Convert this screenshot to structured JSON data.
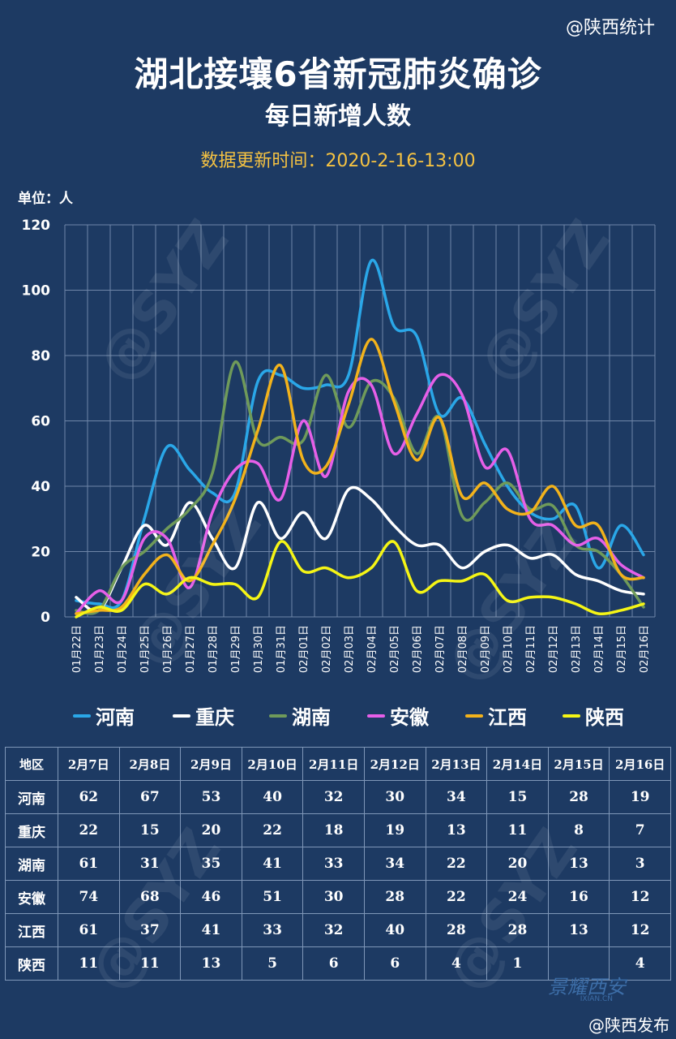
{
  "source": "@陕西统计",
  "title": "湖北接壤6省新冠肺炎确诊",
  "subtitle": "每日新增人数",
  "update_time": "数据更新时间：2020-2-16-13:00",
  "unit": "单位：人",
  "watermark": "@SYZ",
  "brand": "景耀西安",
  "brand_sub": "IXIAN.CN",
  "footer": "@陕西发布",
  "chart_data": {
    "type": "line",
    "ylim": [
      0,
      120
    ],
    "yticks": [
      0,
      20,
      40,
      60,
      80,
      100,
      120
    ],
    "categories": [
      "01月22日",
      "01月23日",
      "01月24日",
      "01月25日",
      "01月26日",
      "01月27日",
      "01月28日",
      "01月29日",
      "01月30日",
      "01月31日",
      "02月01日",
      "02月02日",
      "02月03日",
      "02月04日",
      "02月05日",
      "02月06日",
      "02月07日",
      "02月08日",
      "02月09日",
      "02月10日",
      "02月11日",
      "02月12日",
      "02月13日",
      "02月14日",
      "02月15日",
      "02月16日"
    ],
    "series": [
      {
        "name": "河南",
        "color": "#2aa7e8",
        "values": [
          5,
          4,
          5,
          30,
          52,
          45,
          38,
          38,
          72,
          74,
          70,
          71,
          74,
          109,
          89,
          86,
          62,
          67,
          53,
          40,
          32,
          30,
          34,
          15,
          28,
          19
        ]
      },
      {
        "name": "重庆",
        "color": "#ffffff",
        "values": [
          6,
          2,
          15,
          28,
          22,
          35,
          24,
          15,
          35,
          24,
          32,
          24,
          39,
          36,
          28,
          22,
          22,
          15,
          20,
          22,
          18,
          19,
          13,
          11,
          8,
          7
        ]
      },
      {
        "name": "湖南",
        "color": "#6f9a5a",
        "values": [
          2,
          2,
          15,
          20,
          27,
          33,
          44,
          78,
          54,
          55,
          54,
          74,
          58,
          72,
          67,
          50,
          61,
          31,
          35,
          41,
          33,
          34,
          22,
          20,
          13,
          3
        ]
      },
      {
        "name": "安徽",
        "color": "#e65fe8",
        "values": [
          1,
          8,
          5,
          24,
          24,
          9,
          32,
          45,
          47,
          36,
          60,
          43,
          69,
          71,
          50,
          62,
          74,
          68,
          46,
          51,
          30,
          28,
          22,
          24,
          16,
          12
        ]
      },
      {
        "name": "江西",
        "color": "#f2b21b",
        "values": [
          1,
          2,
          3,
          13,
          19,
          11,
          22,
          36,
          57,
          77,
          48,
          46,
          65,
          85,
          66,
          48,
          61,
          37,
          41,
          33,
          32,
          40,
          28,
          28,
          13,
          12
        ]
      },
      {
        "name": "陕西",
        "color": "#f5f515",
        "values": [
          0,
          3,
          2,
          10,
          7,
          12,
          10,
          10,
          6,
          23,
          14,
          15,
          12,
          15,
          23,
          8,
          11,
          11,
          13,
          5,
          6,
          6,
          4,
          1,
          2,
          4
        ]
      }
    ]
  },
  "table": {
    "corner": "地区",
    "columns": [
      "2月7日",
      "2月8日",
      "2月9日",
      "2月10日",
      "2月11日",
      "2月12日",
      "2月13日",
      "2月14日",
      "2月15日",
      "2月16日"
    ],
    "rows": [
      {
        "region": "河南",
        "values": [
          "62",
          "67",
          "53",
          "40",
          "32",
          "30",
          "34",
          "15",
          "28",
          "19"
        ]
      },
      {
        "region": "重庆",
        "values": [
          "22",
          "15",
          "20",
          "22",
          "18",
          "19",
          "13",
          "11",
          "8",
          "7"
        ]
      },
      {
        "region": "湖南",
        "values": [
          "61",
          "31",
          "35",
          "41",
          "33",
          "34",
          "22",
          "20",
          "13",
          "3"
        ]
      },
      {
        "region": "安徽",
        "values": [
          "74",
          "68",
          "46",
          "51",
          "30",
          "28",
          "22",
          "24",
          "16",
          "12"
        ]
      },
      {
        "region": "江西",
        "values": [
          "61",
          "37",
          "41",
          "33",
          "32",
          "40",
          "28",
          "28",
          "13",
          "12"
        ]
      },
      {
        "region": "陕西",
        "values": [
          "11",
          "11",
          "13",
          "5",
          "6",
          "6",
          "4",
          "1",
          "",
          "4"
        ]
      }
    ]
  }
}
